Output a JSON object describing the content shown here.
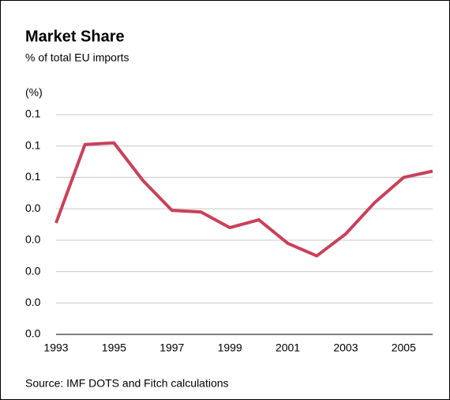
{
  "chart_data": {
    "type": "line",
    "title": "Market Share",
    "subtitle": "% of total EU imports",
    "y_label": "(%)",
    "source": "Source: IMF DOTS and Fitch calculations",
    "x": [
      1993,
      1994,
      1995,
      1996,
      1997,
      1998,
      1999,
      2000,
      2001,
      2002,
      2003,
      2004,
      2005,
      2006
    ],
    "series": [
      {
        "name": "Market share",
        "color": "#c8415a",
        "values": [
          0.0355,
          0.0605,
          0.061,
          0.049,
          0.0395,
          0.039,
          0.034,
          0.0365,
          0.029,
          0.025,
          0.032,
          0.042,
          0.05,
          0.052
        ]
      }
    ],
    "xlim": [
      1993,
      2006
    ],
    "xticks": [
      1993,
      1995,
      1997,
      1999,
      2001,
      2003,
      2005
    ],
    "ylim": [
      0,
      0.07
    ],
    "yticks": [
      {
        "value": 0,
        "label": "0.0"
      },
      {
        "value": 0.01,
        "label": "0.0"
      },
      {
        "value": 0.02,
        "label": "0.0"
      },
      {
        "value": 0.03,
        "label": "0.0"
      },
      {
        "value": 0.04,
        "label": "0.0"
      },
      {
        "value": 0.05,
        "label": "0.1"
      },
      {
        "value": 0.06,
        "label": "0.1"
      },
      {
        "value": 0.07,
        "label": "0.1"
      }
    ],
    "grid": true
  }
}
